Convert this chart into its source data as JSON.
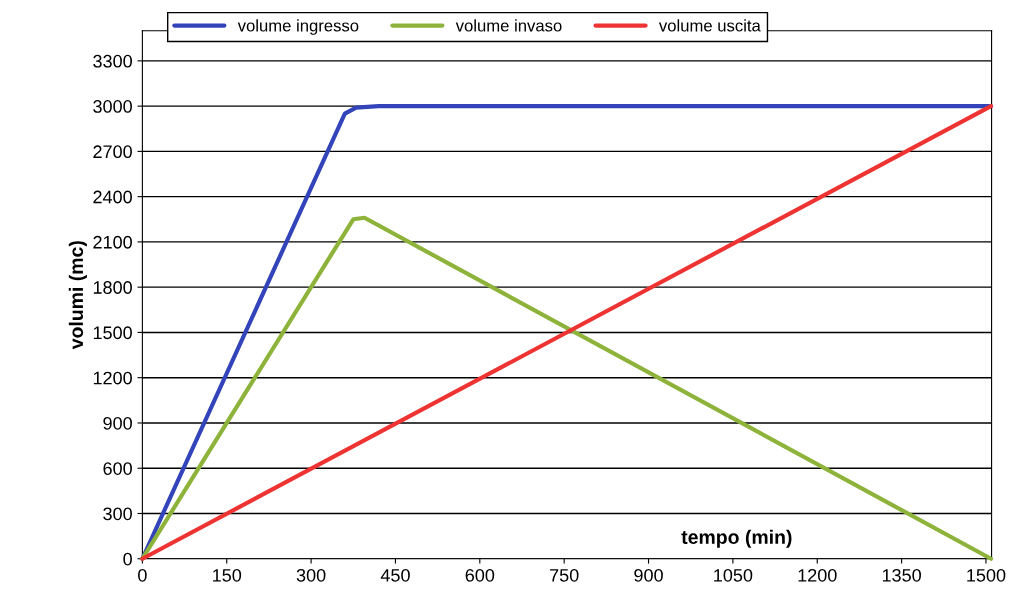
{
  "chart_data": {
    "type": "line",
    "xlabel": "tempo (min)",
    "ylabel": "volumi (mc)",
    "series": [
      {
        "name": "volume ingresso",
        "color": "#3344bb",
        "x": [
          0,
          360,
          380,
          420,
          1509
        ],
        "values": [
          0,
          2950,
          2990,
          3000,
          3000
        ]
      },
      {
        "name": "volume invaso",
        "color": "#8db33a",
        "x": [
          0,
          200,
          375,
          395,
          1509
        ],
        "values": [
          0,
          1200,
          2250,
          2260,
          0
        ]
      },
      {
        "name": "volume uscita",
        "color": "#ee3333",
        "x": [
          0,
          1509
        ],
        "values": [
          0,
          3000
        ]
      }
    ],
    "xlim": [
      0,
      1510
    ],
    "xticks": [
      0,
      150,
      300,
      450,
      600,
      750,
      900,
      1050,
      1200,
      1350,
      1500
    ],
    "ylim": [
      0,
      3500
    ],
    "yticks": [
      0,
      300,
      600,
      900,
      1200,
      1500,
      1800,
      2100,
      2400,
      2700,
      3000,
      3300
    ],
    "grid": "y",
    "legend": "top left",
    "marker": "none",
    "line_style": "solid"
  }
}
